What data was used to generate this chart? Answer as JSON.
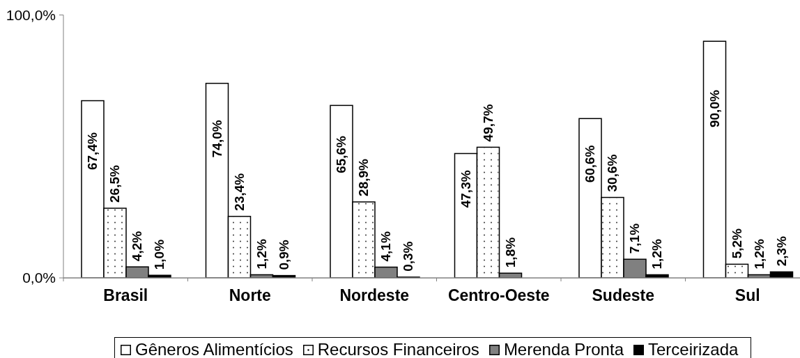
{
  "chart_data": {
    "type": "bar",
    "categories": [
      "Brasil",
      "Norte",
      "Nordeste",
      "Centro-Oeste",
      "Sudeste",
      "Sul"
    ],
    "series": [
      {
        "name": "Gêneros Alimentícios",
        "color": "#ffffff",
        "values": [
          67.4,
          74.0,
          65.6,
          47.3,
          60.6,
          90.0
        ],
        "value_labels": [
          "67,4%",
          "74,0%",
          "65,6%",
          "47,3%",
          "60,6%",
          "90,0%"
        ]
      },
      {
        "name": "Recursos Financeiros",
        "color": "#ffffff",
        "values": [
          26.5,
          23.4,
          28.9,
          49.7,
          30.6,
          5.2
        ],
        "value_labels": [
          "26,5%",
          "23,4%",
          "28,9%",
          "49,7%",
          "30,6%",
          "5,2%"
        ]
      },
      {
        "name": "Merenda Pronta",
        "color": "#808080",
        "values": [
          4.2,
          1.2,
          4.1,
          1.8,
          7.1,
          1.2
        ],
        "value_labels": [
          "4,2%",
          "1,2%",
          "4,1%",
          "1,8%",
          "7,1%",
          "1,2%"
        ]
      },
      {
        "name": "Terceirizada",
        "color": "#000000",
        "values": [
          1.0,
          0.9,
          0.3,
          null,
          1.2,
          2.3
        ],
        "value_labels": [
          "1,0%",
          "0,9%",
          "0,3%",
          null,
          "1,2%",
          "2,3%"
        ]
      }
    ],
    "ylim": [
      0,
      100
    ],
    "yticks": [
      {
        "value": 0,
        "label": "0,0%"
      },
      {
        "value": 100,
        "label": "100,0%"
      }
    ],
    "legend": "bottom"
  }
}
